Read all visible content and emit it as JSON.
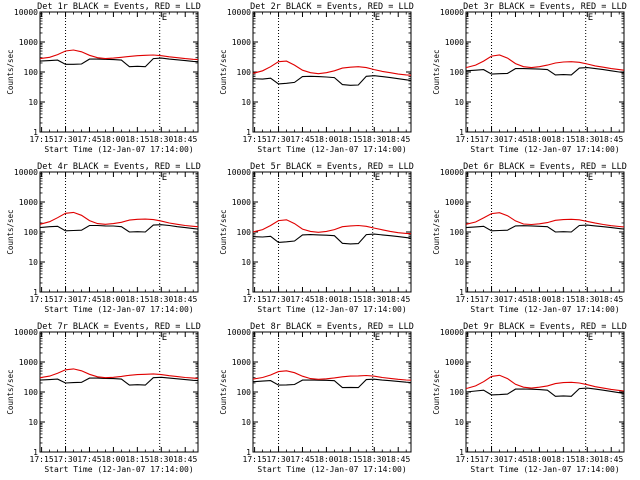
{
  "colors": {
    "events": "#000000",
    "lld": "#e00000",
    "axes": "#000000"
  },
  "chart_data": [
    {
      "type": "line",
      "title": "Det 1r BLACK = Events, RED = LLD",
      "xlabel": "Start Time (12-Jan-07 17:14:00)",
      "ylabel": "Counts/sec",
      "yscale": "log",
      "ylim": [
        1,
        10000
      ],
      "xlim": [
        "17:14",
        "18:53"
      ],
      "x_tick_labels": [
        "17:15",
        "17:30",
        "17:45",
        "18:00",
        "18:15",
        "18:30",
        "18:45"
      ],
      "y_tick_labels": [
        "1",
        "10",
        "100",
        "1000",
        "10000"
      ],
      "vlines": [
        "17:30",
        "18:29"
      ],
      "markers": [
        {
          "text": "E",
          "x": "18:32"
        }
      ],
      "x": [
        "17:14",
        "17:20",
        "17:25",
        "17:30",
        "17:35",
        "17:40",
        "17:45",
        "17:50",
        "17:55",
        "18:00",
        "18:05",
        "18:10",
        "18:15",
        "18:20",
        "18:25",
        "18:30",
        "18:35",
        "18:40",
        "18:45",
        "18:50",
        "18:53"
      ],
      "series": [
        {
          "name": "Events",
          "color": "black",
          "values": [
            230,
            240,
            250,
            180,
            180,
            185,
            270,
            270,
            265,
            260,
            250,
            150,
            155,
            150,
            280,
            290,
            270,
            255,
            240,
            225,
            220
          ]
        },
        {
          "name": "LLD",
          "color": "red",
          "values": [
            280,
            310,
            380,
            500,
            540,
            470,
            360,
            300,
            280,
            290,
            310,
            330,
            350,
            360,
            370,
            350,
            320,
            300,
            280,
            265,
            260
          ]
        }
      ]
    },
    {
      "type": "line",
      "title": "Det 2r BLACK = Events, RED = LLD",
      "xlabel": "Start Time (12-Jan-07 17:14:00)",
      "ylabel": "Counts/sec",
      "yscale": "log",
      "ylim": [
        1,
        10000
      ],
      "xlim": [
        "17:14",
        "18:53"
      ],
      "x_tick_labels": [
        "17:15",
        "17:30",
        "17:45",
        "18:00",
        "18:15",
        "18:30",
        "18:45"
      ],
      "y_tick_labels": [
        "1",
        "10",
        "100",
        "1000",
        "10000"
      ],
      "vlines": [
        "17:30",
        "18:29"
      ],
      "markers": [
        {
          "text": "E",
          "x": "18:32"
        }
      ],
      "x": [
        "17:14",
        "17:20",
        "17:25",
        "17:30",
        "17:35",
        "17:40",
        "17:45",
        "17:50",
        "17:55",
        "18:00",
        "18:05",
        "18:10",
        "18:15",
        "18:20",
        "18:25",
        "18:30",
        "18:35",
        "18:40",
        "18:45",
        "18:50",
        "18:53"
      ],
      "series": [
        {
          "name": "Events",
          "color": "black",
          "values": [
            60,
            58,
            62,
            40,
            42,
            45,
            70,
            72,
            70,
            68,
            65,
            38,
            36,
            37,
            72,
            75,
            70,
            65,
            60,
            55,
            52
          ]
        },
        {
          "name": "LLD",
          "color": "red",
          "values": [
            90,
            110,
            150,
            220,
            230,
            170,
            115,
            95,
            88,
            95,
            110,
            135,
            145,
            150,
            140,
            120,
            105,
            95,
            85,
            80,
            78
          ]
        }
      ]
    },
    {
      "type": "line",
      "title": "Det 3r BLACK = Events, RED = LLD",
      "xlabel": "Start Time (12-Jan-07 17:14:00)",
      "ylabel": "Counts/sec",
      "yscale": "log",
      "ylim": [
        1,
        10000
      ],
      "xlim": [
        "17:14",
        "18:53"
      ],
      "x_tick_labels": [
        "17:15",
        "17:30",
        "17:45",
        "18:00",
        "18:15",
        "18:30",
        "18:45"
      ],
      "y_tick_labels": [
        "1",
        "10",
        "100",
        "1000",
        "10000"
      ],
      "vlines": [
        "17:30",
        "18:29"
      ],
      "markers": [
        {
          "text": "E",
          "x": "18:32"
        }
      ],
      "x": [
        "17:14",
        "17:20",
        "17:25",
        "17:30",
        "17:35",
        "17:40",
        "17:45",
        "17:50",
        "17:55",
        "18:00",
        "18:05",
        "18:10",
        "18:15",
        "18:20",
        "18:25",
        "18:30",
        "18:35",
        "18:40",
        "18:45",
        "18:50",
        "18:53"
      ],
      "series": [
        {
          "name": "Events",
          "color": "black",
          "values": [
            110,
            115,
            120,
            85,
            88,
            90,
            130,
            130,
            128,
            125,
            120,
            80,
            82,
            80,
            135,
            140,
            130,
            120,
            110,
            100,
            95
          ]
        },
        {
          "name": "LLD",
          "color": "red",
          "values": [
            140,
            170,
            230,
            340,
            370,
            290,
            190,
            150,
            140,
            150,
            170,
            200,
            215,
            220,
            210,
            185,
            160,
            145,
            130,
            120,
            115
          ]
        }
      ]
    },
    {
      "type": "line",
      "title": "Det 4r BLACK = Events, RED = LLD",
      "xlabel": "Start Time (12-Jan-07 17:14:00)",
      "ylabel": "Counts/sec",
      "yscale": "log",
      "ylim": [
        1,
        10000
      ],
      "xlim": [
        "17:14",
        "18:53"
      ],
      "x_tick_labels": [
        "17:15",
        "17:30",
        "17:45",
        "18:00",
        "18:15",
        "18:30",
        "18:45"
      ],
      "y_tick_labels": [
        "1",
        "10",
        "100",
        "1000",
        "10000"
      ],
      "vlines": [
        "17:30",
        "18:29"
      ],
      "markers": [
        {
          "text": "E",
          "x": "18:32"
        }
      ],
      "x": [
        "17:14",
        "17:20",
        "17:25",
        "17:30",
        "17:35",
        "17:40",
        "17:45",
        "17:50",
        "17:55",
        "18:00",
        "18:05",
        "18:10",
        "18:15",
        "18:20",
        "18:25",
        "18:30",
        "18:35",
        "18:40",
        "18:45",
        "18:50",
        "18:53"
      ],
      "series": [
        {
          "name": "Events",
          "color": "black",
          "values": [
            140,
            150,
            155,
            110,
            112,
            115,
            165,
            165,
            160,
            158,
            150,
            100,
            102,
            100,
            170,
            175,
            165,
            150,
            140,
            130,
            125
          ]
        },
        {
          "name": "LLD",
          "color": "red",
          "values": [
            180,
            220,
            300,
            420,
            450,
            360,
            240,
            190,
            180,
            190,
            210,
            250,
            265,
            270,
            260,
            230,
            200,
            180,
            165,
            155,
            150
          ]
        }
      ]
    },
    {
      "type": "line",
      "title": "Det 5r BLACK = Events, RED = LLD",
      "xlabel": "Start Time (12-Jan-07 17:14:00)",
      "ylabel": "Counts/sec",
      "yscale": "log",
      "ylim": [
        1,
        10000
      ],
      "xlim": [
        "17:14",
        "18:53"
      ],
      "x_tick_labels": [
        "17:15",
        "17:30",
        "17:45",
        "18:00",
        "18:15",
        "18:30",
        "18:45"
      ],
      "y_tick_labels": [
        "1",
        "10",
        "100",
        "1000",
        "10000"
      ],
      "vlines": [
        "17:30",
        "18:29"
      ],
      "markers": [
        {
          "text": "E",
          "x": "18:32"
        }
      ],
      "x": [
        "17:14",
        "17:20",
        "17:25",
        "17:30",
        "17:35",
        "17:40",
        "17:45",
        "17:50",
        "17:55",
        "18:00",
        "18:05",
        "18:10",
        "18:15",
        "18:20",
        "18:25",
        "18:30",
        "18:35",
        "18:40",
        "18:45",
        "18:50",
        "18:53"
      ],
      "series": [
        {
          "name": "Events",
          "color": "black",
          "values": [
            70,
            68,
            72,
            45,
            47,
            50,
            80,
            82,
            80,
            78,
            75,
            42,
            40,
            41,
            82,
            85,
            80,
            75,
            70,
            65,
            62
          ]
        },
        {
          "name": "LLD",
          "color": "red",
          "values": [
            100,
            120,
            165,
            240,
            255,
            190,
            125,
            105,
            98,
            105,
            120,
            150,
            160,
            165,
            155,
            135,
            118,
            105,
            95,
            90,
            88
          ]
        }
      ]
    },
    {
      "type": "line",
      "title": "Det 6r BLACK = Events, RED = LLD",
      "xlabel": "Start Time (12-Jan-07 17:14:00)",
      "ylabel": "Counts/sec",
      "yscale": "log",
      "ylim": [
        1,
        10000
      ],
      "xlim": [
        "17:14",
        "18:53"
      ],
      "x_tick_labels": [
        "17:15",
        "17:30",
        "17:45",
        "18:00",
        "18:15",
        "18:30",
        "18:45"
      ],
      "y_tick_labels": [
        "1",
        "10",
        "100",
        "1000",
        "10000"
      ],
      "vlines": [
        "17:30",
        "18:29"
      ],
      "markers": [
        {
          "text": "E",
          "x": "18:32"
        }
      ],
      "x": [
        "17:14",
        "17:20",
        "17:25",
        "17:30",
        "17:35",
        "17:40",
        "17:45",
        "17:50",
        "17:55",
        "18:00",
        "18:05",
        "18:10",
        "18:15",
        "18:20",
        "18:25",
        "18:30",
        "18:35",
        "18:40",
        "18:45",
        "18:50",
        "18:53"
      ],
      "series": [
        {
          "name": "Events",
          "color": "black",
          "values": [
            140,
            148,
            155,
            110,
            112,
            115,
            160,
            162,
            160,
            155,
            150,
            100,
            102,
            100,
            165,
            170,
            160,
            150,
            140,
            130,
            125
          ]
        },
        {
          "name": "LLD",
          "color": "red",
          "values": [
            180,
            215,
            295,
            410,
            440,
            350,
            235,
            185,
            178,
            188,
            205,
            245,
            260,
            265,
            255,
            225,
            198,
            178,
            162,
            152,
            148
          ]
        }
      ]
    },
    {
      "type": "line",
      "title": "Det 7r BLACK = Events, RED = LLD",
      "xlabel": "Start Time (12-Jan-07 17:14:00)",
      "ylabel": "Counts/sec",
      "yscale": "log",
      "ylim": [
        1,
        10000
      ],
      "xlim": [
        "17:14",
        "18:53"
      ],
      "x_tick_labels": [
        "17:15",
        "17:30",
        "17:45",
        "18:00",
        "18:15",
        "18:30",
        "18:45"
      ],
      "y_tick_labels": [
        "1",
        "10",
        "100",
        "1000",
        "10000"
      ],
      "vlines": [
        "17:30",
        "18:29"
      ],
      "markers": [
        {
          "text": "E",
          "x": "18:32"
        }
      ],
      "x": [
        "17:14",
        "17:20",
        "17:25",
        "17:30",
        "17:35",
        "17:40",
        "17:45",
        "17:50",
        "17:55",
        "18:00",
        "18:05",
        "18:10",
        "18:15",
        "18:20",
        "18:25",
        "18:30",
        "18:35",
        "18:40",
        "18:45",
        "18:50",
        "18:53"
      ],
      "series": [
        {
          "name": "Events",
          "color": "black",
          "values": [
            250,
            260,
            270,
            200,
            205,
            210,
            290,
            290,
            285,
            280,
            270,
            170,
            175,
            170,
            300,
            310,
            290,
            275,
            260,
            245,
            240
          ]
        },
        {
          "name": "LLD",
          "color": "red",
          "values": [
            300,
            340,
            420,
            550,
            590,
            510,
            390,
            320,
            300,
            310,
            330,
            360,
            380,
            390,
            400,
            380,
            350,
            325,
            305,
            290,
            285
          ]
        }
      ]
    },
    {
      "type": "line",
      "title": "Det 8r BLACK = Events, RED = LLD",
      "xlabel": "Start Time (12-Jan-07 17:14:00)",
      "ylabel": "Counts/sec",
      "yscale": "log",
      "ylim": [
        1,
        10000
      ],
      "xlim": [
        "17:14",
        "18:53"
      ],
      "x_tick_labels": [
        "17:15",
        "17:30",
        "17:45",
        "18:00",
        "18:15",
        "18:30",
        "18:45"
      ],
      "y_tick_labels": [
        "1",
        "10",
        "100",
        "1000",
        "10000"
      ],
      "vlines": [
        "17:30",
        "18:29"
      ],
      "markers": [
        {
          "text": "E",
          "x": "18:32"
        }
      ],
      "x": [
        "17:14",
        "17:20",
        "17:25",
        "17:30",
        "17:35",
        "17:40",
        "17:45",
        "17:50",
        "17:55",
        "18:00",
        "18:05",
        "18:10",
        "18:15",
        "18:20",
        "18:25",
        "18:30",
        "18:35",
        "18:40",
        "18:45",
        "18:50",
        "18:53"
      ],
      "series": [
        {
          "name": "Events",
          "color": "black",
          "values": [
            220,
            230,
            240,
            170,
            172,
            178,
            250,
            252,
            248,
            245,
            238,
            140,
            142,
            140,
            260,
            268,
            250,
            238,
            225,
            212,
            208
          ]
        },
        {
          "name": "LLD",
          "color": "red",
          "values": [
            270,
            305,
            370,
            480,
            510,
            440,
            335,
            280,
            265,
            275,
            295,
            320,
            338,
            345,
            355,
            335,
            305,
            285,
            265,
            252,
            248
          ]
        }
      ]
    },
    {
      "type": "line",
      "title": "Det 9r BLACK = Events, RED = LLD",
      "xlabel": "Start Time (12-Jan-07 17:14:00)",
      "ylabel": "Counts/sec",
      "yscale": "log",
      "ylim": [
        1,
        10000
      ],
      "xlim": [
        "17:14",
        "18:53"
      ],
      "x_tick_labels": [
        "17:15",
        "17:30",
        "17:45",
        "18:00",
        "18:15",
        "18:30",
        "18:45"
      ],
      "y_tick_labels": [
        "1",
        "10",
        "100",
        "1000",
        "10000"
      ],
      "vlines": [
        "17:30",
        "18:29"
      ],
      "markers": [
        {
          "text": "E",
          "x": "18:32"
        }
      ],
      "x": [
        "17:14",
        "17:20",
        "17:25",
        "17:30",
        "17:35",
        "17:40",
        "17:45",
        "17:50",
        "17:55",
        "18:00",
        "18:05",
        "18:10",
        "18:15",
        "18:20",
        "18:25",
        "18:30",
        "18:35",
        "18:40",
        "18:45",
        "18:50",
        "18:53"
      ],
      "series": [
        {
          "name": "Events",
          "color": "black",
          "values": [
            100,
            108,
            115,
            80,
            82,
            85,
            125,
            126,
            124,
            120,
            115,
            72,
            74,
            72,
            130,
            135,
            125,
            115,
            105,
            95,
            90
          ]
        },
        {
          "name": "LLD",
          "color": "red",
          "values": [
            130,
            160,
            220,
            330,
            360,
            280,
            180,
            145,
            135,
            145,
            160,
            190,
            205,
            210,
            200,
            175,
            150,
            135,
            122,
            113,
            108
          ]
        }
      ]
    }
  ]
}
